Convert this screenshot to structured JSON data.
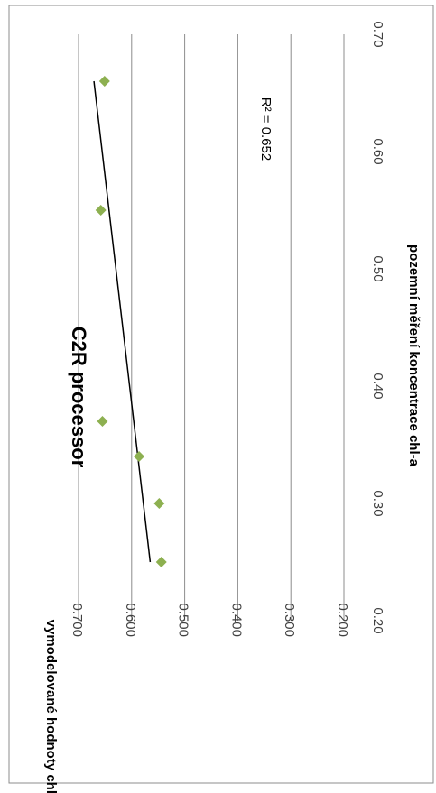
{
  "chart_data": {
    "type": "scatter",
    "orientation": "rotated-90-clockwise",
    "title": "C2R processor",
    "xlabel": "pozemní měření  koncentrace chl-a",
    "ylabel": "vymodelované hodnoty chl-a",
    "xlim": [
      0.2,
      0.7
    ],
    "ylim": [
      0.2,
      0.7
    ],
    "x_ticks": [
      "0.20",
      "0.30",
      "0.40",
      "0.50",
      "0.60",
      "0.70"
    ],
    "y_ticks": [
      "0.200",
      "0.300",
      "0.400",
      "0.500",
      "0.600",
      "0.700"
    ],
    "grid": true,
    "legend": "none",
    "series": [
      {
        "marker": "diamond",
        "color": "#8DB050",
        "x": [
          0.25,
          0.3,
          0.34,
          0.37,
          0.55,
          0.66
        ],
        "y": [
          0.544,
          0.548,
          0.586,
          0.655,
          0.658,
          0.651
        ]
      }
    ],
    "trendline": {
      "type": "linear",
      "color": "#000000",
      "x_range": [
        0.25,
        0.66
      ],
      "y_values": [
        0.565,
        0.671
      ],
      "r_squared_label": "R² = 0.652"
    }
  }
}
